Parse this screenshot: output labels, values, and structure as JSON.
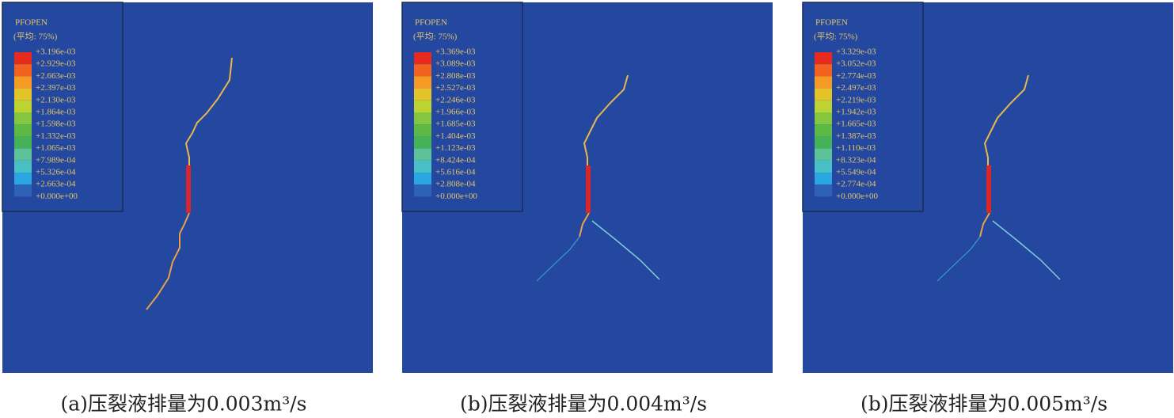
{
  "legend_colors": [
    "#e62b1e",
    "#f1621f",
    "#f59a22",
    "#e3c32a",
    "#bcd332",
    "#86c540",
    "#5cb946",
    "#45b257",
    "#5dc29a",
    "#48c0c6",
    "#2aa7e0",
    "#2e62b6"
  ],
  "panels": [
    {
      "legend": {
        "title": "PFOPEN",
        "subtitle": "(平均: 75%)",
        "labels": [
          "+3.196e-03",
          "+2.929e-03",
          "+2.663e-03",
          "+2.397e-03",
          "+2.130e-03",
          "+1.864e-03",
          "+1.598e-03",
          "+1.332e-03",
          "+1.065e-03",
          "+7.989e-04",
          "+5.326e-04",
          "+2.663e-04",
          "+0.000e+00"
        ]
      },
      "caption": "(a)压裂液排量为0.003m³/s"
    },
    {
      "legend": {
        "title": "PFOPEN",
        "subtitle": "(平均: 75%)",
        "labels": [
          "+3.369e-03",
          "+3.089e-03",
          "+2.808e-03",
          "+2.527e-03",
          "+2.246e-03",
          "+1.966e-03",
          "+1.685e-03",
          "+1.404e-03",
          "+1.123e-03",
          "+8.424e-04",
          "+5.616e-04",
          "+2.808e-04",
          "+0.000e+00"
        ]
      },
      "caption": "(b)压裂液排量为0.004m³/s"
    },
    {
      "legend": {
        "title": "PFOPEN",
        "subtitle": "(平均: 75%)",
        "labels": [
          "+3.329e-03",
          "+3.052e-03",
          "+2.774e-03",
          "+2.497e-03",
          "+2.219e-03",
          "+1.942e-03",
          "+1.665e-03",
          "+1.387e-03",
          "+1.110e-03",
          "+8.323e-04",
          "+5.549e-04",
          "+2.774e-04",
          "+0.000e+00"
        ]
      },
      "caption": "(b)压裂液排量为0.005m³/s"
    }
  ]
}
